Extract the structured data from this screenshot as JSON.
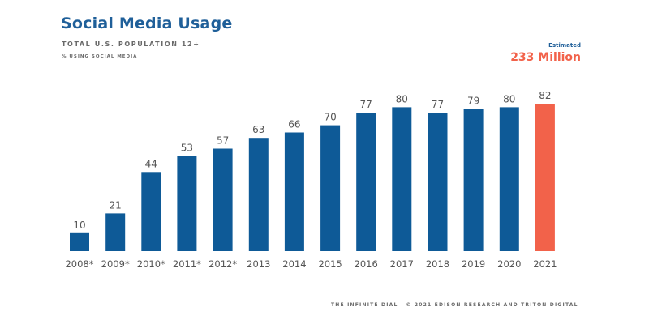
{
  "header": {
    "title": "Social Media Usage",
    "subtitle": "TOTAL U.S. POPULATION 12+",
    "subsubtitle": "% USING SOCIAL MEDIA"
  },
  "estimate": {
    "label": "Estimated",
    "value": "233 Million"
  },
  "footer": {
    "text": "THE INFINITE DIAL   © 2021 EDISON RESEARCH AND TRITON DIGITAL"
  },
  "colors": {
    "bar": "#0e5a97",
    "highlight_bar": "#f2624a",
    "title": "#1f5f99"
  },
  "chart_data": {
    "type": "bar",
    "categories": [
      "2008*",
      "2009*",
      "2010*",
      "2011*",
      "2012*",
      "2013",
      "2014",
      "2015",
      "2016",
      "2017",
      "2018",
      "2019",
      "2020",
      "2021"
    ],
    "values": [
      10,
      21,
      44,
      53,
      57,
      63,
      66,
      70,
      77,
      80,
      77,
      79,
      80,
      82
    ],
    "highlight_index": 13,
    "title": "Social Media Usage",
    "xlabel": "",
    "ylabel": "",
    "ylim": [
      0,
      82
    ],
    "grid": false,
    "legend": "none"
  }
}
